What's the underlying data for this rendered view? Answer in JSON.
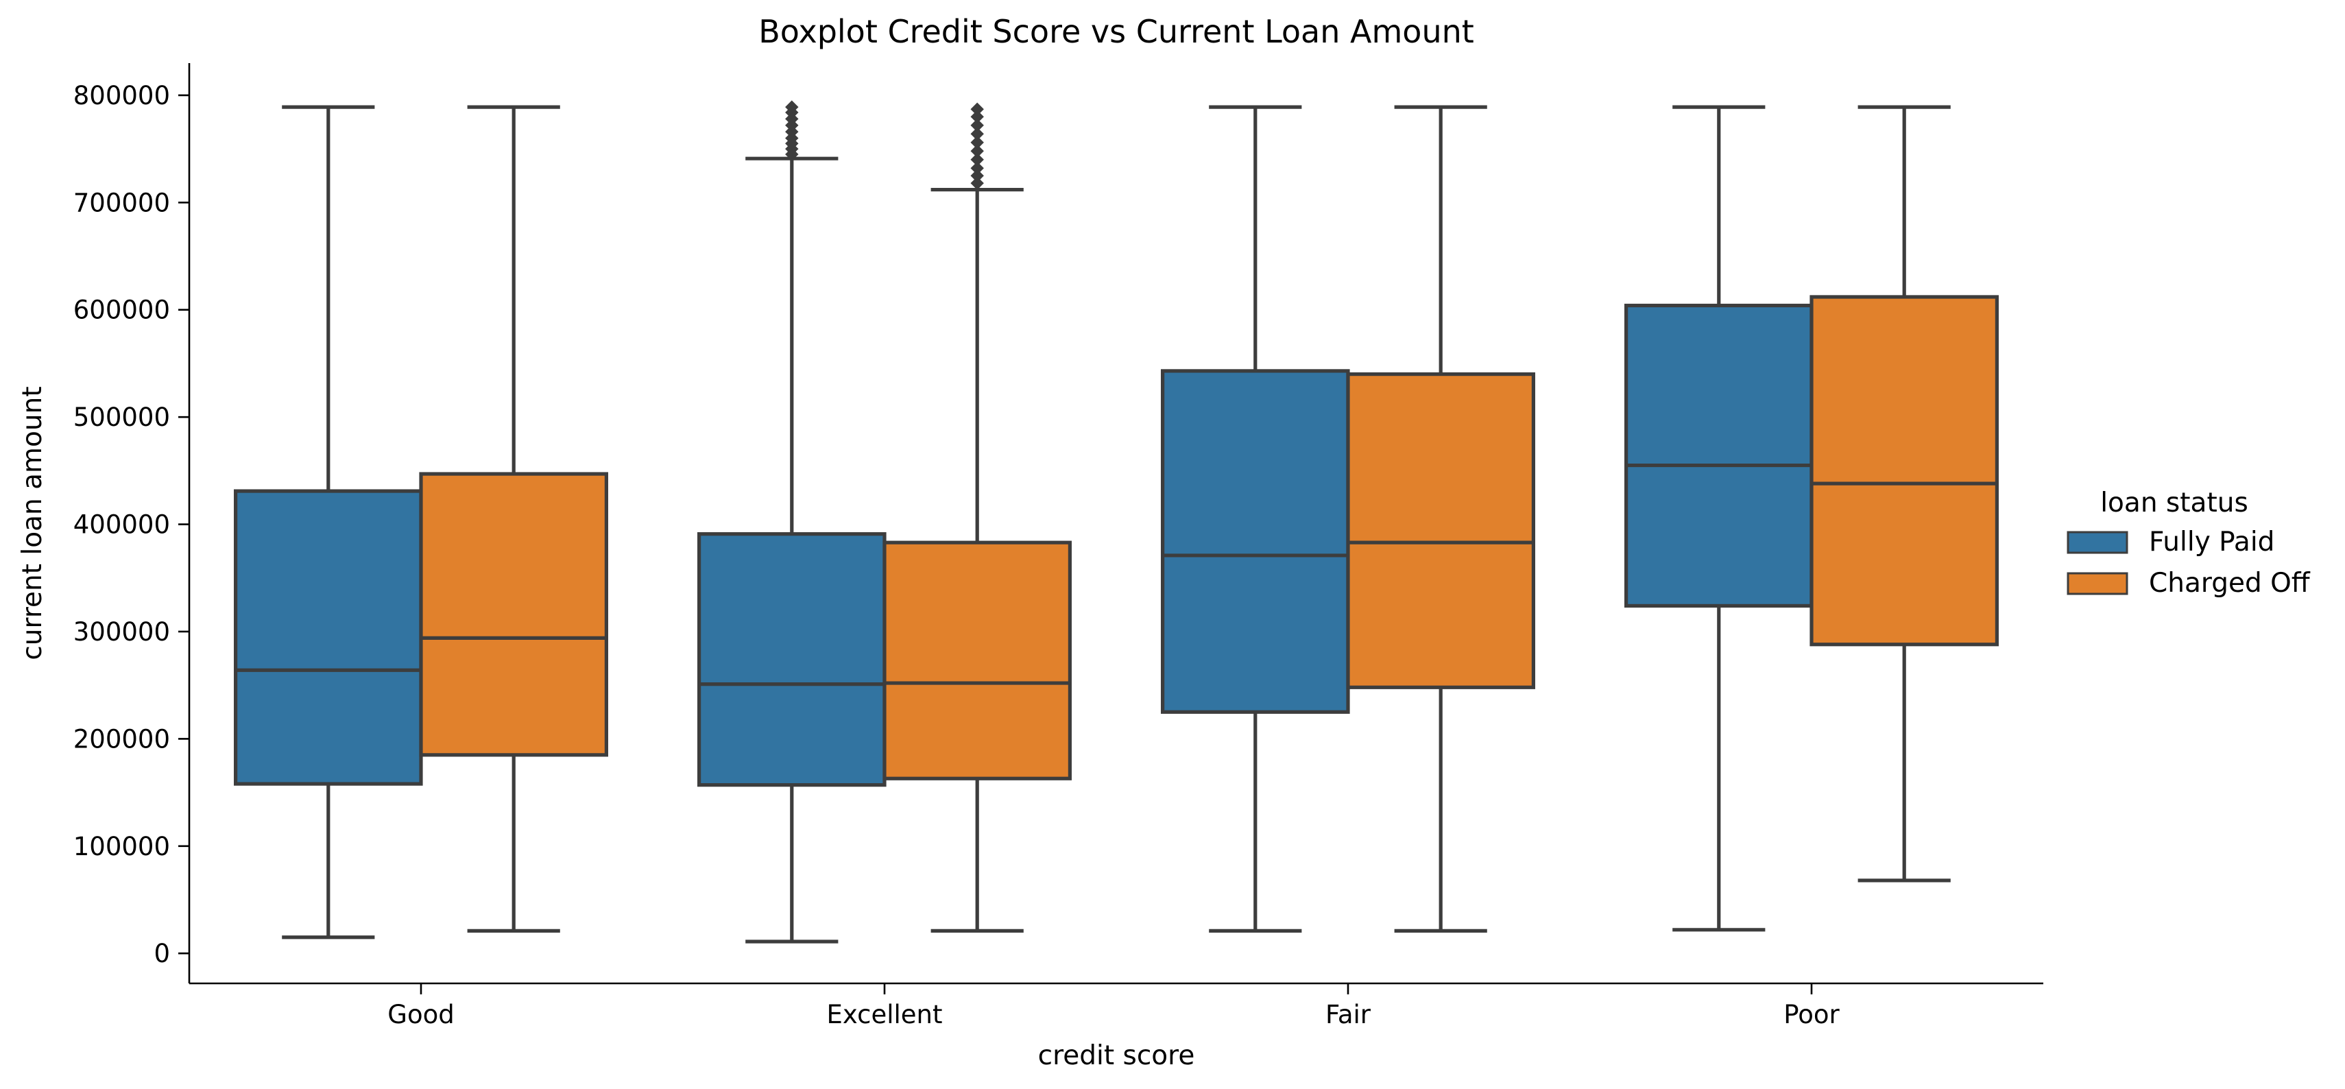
{
  "chart_data": {
    "type": "boxplot",
    "title": "Boxplot Credit Score vs Current Loan Amount",
    "xlabel": "credit score",
    "ylabel": "current loan amount",
    "ylim": [
      -28000,
      830000
    ],
    "yticks": [
      0,
      100000,
      200000,
      300000,
      400000,
      500000,
      600000,
      700000,
      800000
    ],
    "ytick_labels": [
      "0",
      "100000",
      "200000",
      "300000",
      "400000",
      "500000",
      "600000",
      "700000",
      "800000"
    ],
    "categories": [
      "Good",
      "Excellent",
      "Fair",
      "Poor"
    ],
    "legend": {
      "title": "loan status",
      "placement": "right"
    },
    "series": [
      {
        "name": "Fully Paid",
        "color": "#3274a1",
        "boxes": [
          {
            "whisker_low": 15000,
            "q1": 158000,
            "median": 264000,
            "q3": 431000,
            "whisker_high": 789000,
            "outliers": []
          },
          {
            "whisker_low": 11000,
            "q1": 157000,
            "median": 251000,
            "q3": 391000,
            "whisker_high": 741000,
            "outliers": [
              745000,
              750000,
              755000,
              760000,
              766000,
              772000,
              778000,
              784000,
              789000
            ]
          },
          {
            "whisker_low": 21000,
            "q1": 225000,
            "median": 371000,
            "q3": 543000,
            "whisker_high": 789000,
            "outliers": []
          },
          {
            "whisker_low": 22000,
            "q1": 324000,
            "median": 455000,
            "q3": 604000,
            "whisker_high": 789000,
            "outliers": []
          }
        ]
      },
      {
        "name": "Charged Off",
        "color": "#e1812c",
        "boxes": [
          {
            "whisker_low": 21000,
            "q1": 185000,
            "median": 294000,
            "q3": 447000,
            "whisker_high": 789000,
            "outliers": []
          },
          {
            "whisker_low": 21000,
            "q1": 163000,
            "median": 252000,
            "q3": 383000,
            "whisker_high": 712000,
            "outliers": [
              718000,
              725000,
              732000,
              740000,
              748000,
              756000,
              764000,
              772000,
              780000,
              787000
            ]
          },
          {
            "whisker_low": 21000,
            "q1": 248000,
            "median": 383000,
            "q3": 540000,
            "whisker_high": 789000,
            "outliers": []
          },
          {
            "whisker_low": 68000,
            "q1": 288000,
            "median": 438000,
            "q3": 612000,
            "whisker_high": 789000,
            "outliers": []
          }
        ]
      }
    ]
  }
}
